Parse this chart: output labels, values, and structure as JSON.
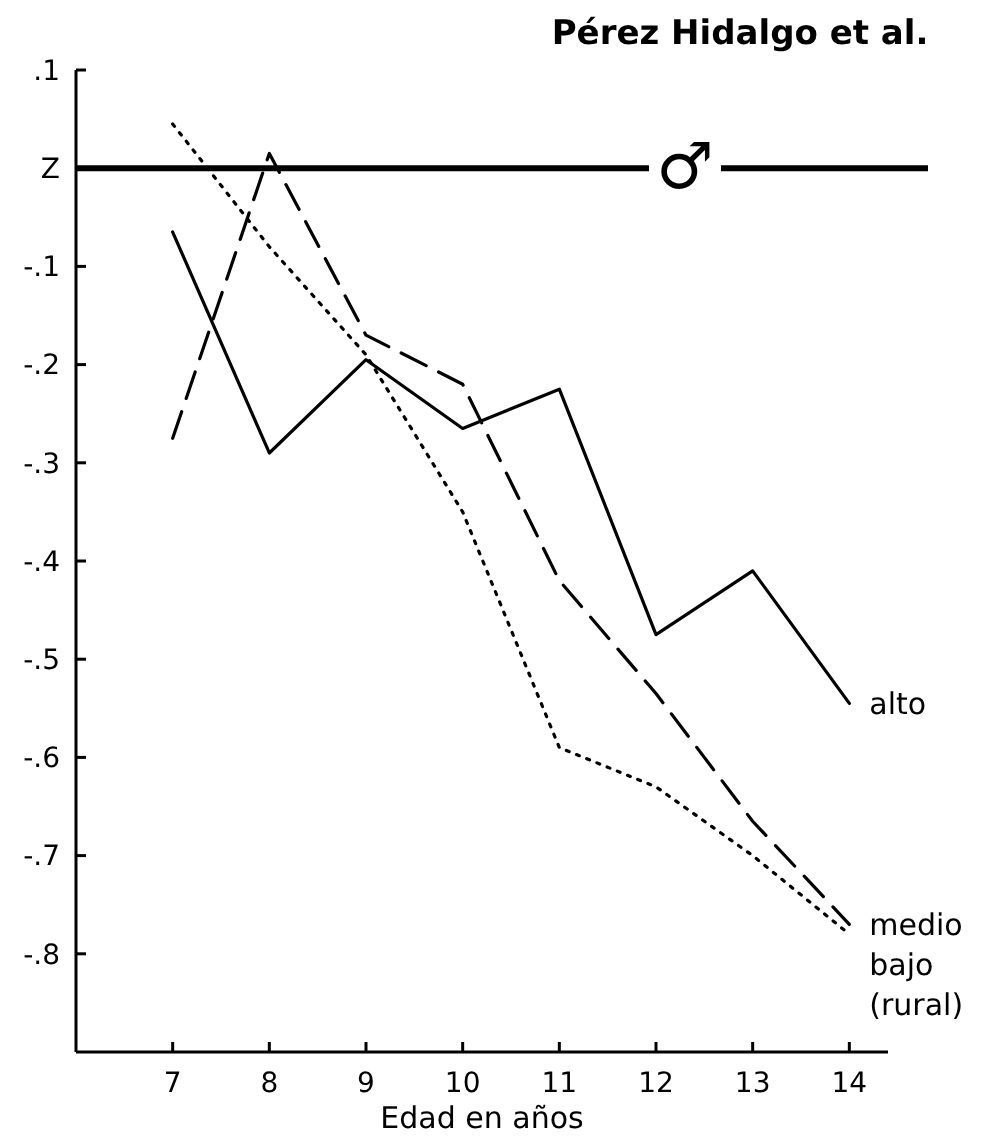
{
  "chart_data": {
    "type": "line",
    "title": "Pérez Hidalgo et al.",
    "xlabel": "Edad en años",
    "x": [
      7,
      8,
      9,
      10,
      11,
      12,
      13,
      14
    ],
    "xlim": [
      6,
      14.4
    ],
    "xticks": [
      7,
      8,
      9,
      10,
      11,
      12,
      13,
      14
    ],
    "ylim": [
      -0.9,
      0.1
    ],
    "yticks": [
      {
        "value": 0.1,
        "label": ".1"
      },
      {
        "value": 0,
        "label": "Z"
      },
      {
        "value": -0.1,
        "label": "-.1"
      },
      {
        "value": -0.2,
        "label": "-.2"
      },
      {
        "value": -0.3,
        "label": "-.3"
      },
      {
        "value": -0.4,
        "label": "-.4"
      },
      {
        "value": -0.5,
        "label": "-.5"
      },
      {
        "value": -0.6,
        "label": "-.6"
      },
      {
        "value": -0.7,
        "label": "-.7"
      },
      {
        "value": -0.8,
        "label": "-.8"
      }
    ],
    "ref_lines": [
      {
        "axis": "y",
        "value": 0,
        "label": "♂",
        "color": "#000000"
      }
    ],
    "grid": false,
    "marker": "none",
    "series": [
      {
        "name": "alto",
        "color": "#000000",
        "line_style": "solid",
        "values": [
          -0.065,
          -0.29,
          -0.195,
          -0.265,
          -0.225,
          -0.475,
          -0.41,
          -0.545
        ]
      },
      {
        "name": "medio",
        "color": "#000000",
        "line_style": "dashed",
        "values": [
          -0.275,
          0.015,
          -0.17,
          -0.22,
          -0.42,
          -0.535,
          -0.665,
          -0.77
        ]
      },
      {
        "name": "bajo (rural)",
        "color": "#000000",
        "line_style": "dotted",
        "values": [
          0.045,
          -0.08,
          -0.19,
          -0.35,
          -0.59,
          -0.63,
          -0.7,
          -0.78
        ]
      }
    ]
  }
}
